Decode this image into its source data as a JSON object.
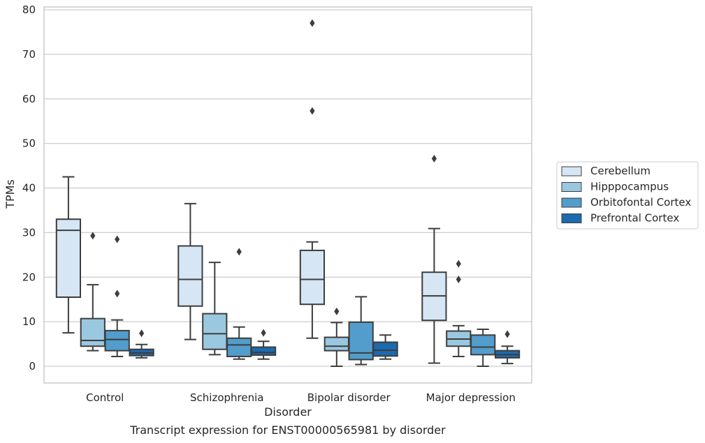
{
  "chart_data": {
    "type": "box",
    "title": "Transcript expression for ENST00000565981 by disorder",
    "xlabel": "Disorder",
    "ylabel": "TPMs",
    "ylim": [
      -3.7,
      81
    ],
    "yticks": [
      0,
      10,
      20,
      30,
      40,
      50,
      60,
      70,
      80
    ],
    "grid": "horizontal",
    "legend_position": "right",
    "categories": [
      "Control",
      "Schizophrenia",
      "Bipolar disorder",
      "Major depression"
    ],
    "series": [
      {
        "name": "Cerebellum",
        "color": "#d6e6f4",
        "boxes": [
          {
            "whisker_low": 7.5,
            "q1": 15.5,
            "median": 30.5,
            "q3": 33.0,
            "whisker_high": 42.5,
            "outliers": []
          },
          {
            "whisker_low": 6.0,
            "q1": 13.5,
            "median": 19.5,
            "q3": 27.0,
            "whisker_high": 36.5,
            "outliers": []
          },
          {
            "whisker_low": 6.3,
            "q1": 13.9,
            "median": 19.5,
            "q3": 26.0,
            "whisker_high": 27.9,
            "outliers": [
              57.3,
              77.0
            ]
          },
          {
            "whisker_low": 0.7,
            "q1": 10.3,
            "median": 15.8,
            "q3": 21.1,
            "whisker_high": 30.9,
            "outliers": [
              46.6
            ]
          }
        ]
      },
      {
        "name": "Hipppocampus",
        "color": "#9ac8e0",
        "boxes": [
          {
            "whisker_low": 3.5,
            "q1": 4.5,
            "median": 5.8,
            "q3": 10.7,
            "whisker_high": 18.3,
            "outliers": [
              29.3
            ]
          },
          {
            "whisker_low": 2.6,
            "q1": 3.8,
            "median": 7.3,
            "q3": 11.8,
            "whisker_high": 23.3,
            "outliers": []
          },
          {
            "whisker_low": 0.0,
            "q1": 3.5,
            "median": 4.5,
            "q3": 6.5,
            "whisker_high": 9.8,
            "outliers": [
              12.3
            ]
          },
          {
            "whisker_low": 2.2,
            "q1": 4.5,
            "median": 6.1,
            "q3": 7.9,
            "whisker_high": 9.1,
            "outliers": [
              19.5,
              23.0
            ]
          }
        ]
      },
      {
        "name": "Orbitofontal Cortex",
        "color": "#529dcc",
        "boxes": [
          {
            "whisker_low": 2.2,
            "q1": 3.5,
            "median": 6.0,
            "q3": 8.0,
            "whisker_high": 10.4,
            "outliers": [
              16.3,
              28.5
            ]
          },
          {
            "whisker_low": 1.6,
            "q1": 2.2,
            "median": 4.8,
            "q3": 6.3,
            "whisker_high": 8.8,
            "outliers": [
              25.7
            ]
          },
          {
            "whisker_low": 0.4,
            "q1": 1.5,
            "median": 3.0,
            "q3": 9.9,
            "whisker_high": 15.6,
            "outliers": []
          },
          {
            "whisker_low": 0.0,
            "q1": 2.6,
            "median": 4.3,
            "q3": 7.0,
            "whisker_high": 8.3,
            "outliers": []
          }
        ]
      },
      {
        "name": "Prefrontal Cortex",
        "color": "#1c6aaf",
        "boxes": [
          {
            "whisker_low": 1.9,
            "q1": 2.4,
            "median": 3.0,
            "q3": 3.8,
            "whisker_high": 4.9,
            "outliers": [
              7.4
            ]
          },
          {
            "whisker_low": 1.6,
            "q1": 2.5,
            "median": 3.1,
            "q3": 4.3,
            "whisker_high": 5.6,
            "outliers": [
              7.5
            ]
          },
          {
            "whisker_low": 1.6,
            "q1": 2.3,
            "median": 3.6,
            "q3": 5.4,
            "whisker_high": 7.0,
            "outliers": []
          },
          {
            "whisker_low": 0.6,
            "q1": 1.9,
            "median": 2.6,
            "q3": 3.5,
            "whisker_high": 4.5,
            "outliers": [
              7.2
            ]
          }
        ]
      }
    ]
  }
}
